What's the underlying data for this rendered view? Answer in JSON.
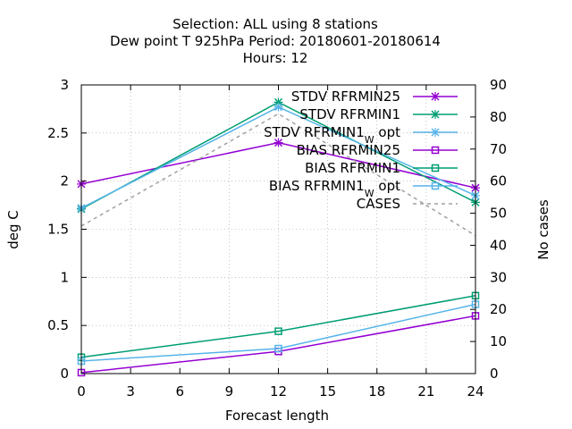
{
  "chart_data": {
    "type": "line",
    "title_lines": [
      "Selection: ALL using     8 stations",
      "Dew point T 925hPa   Period: 20180601-20180614",
      "Hours:  12"
    ],
    "xlabel": "Forecast length",
    "ylabel": "deg C",
    "y2label": "No cases",
    "xlim": [
      0,
      24
    ],
    "ylim": [
      0,
      3
    ],
    "y2lim": [
      0,
      90
    ],
    "x_ticks": [
      0,
      3,
      6,
      9,
      12,
      15,
      18,
      21,
      24
    ],
    "y_ticks": [
      "0",
      "0.5",
      "1",
      "1.5",
      "2",
      "2.5",
      "3"
    ],
    "y_tick_values": [
      0,
      0.5,
      1,
      1.5,
      2,
      2.5,
      3
    ],
    "y2_ticks": [
      0,
      10,
      20,
      30,
      40,
      50,
      60,
      70,
      80,
      90
    ],
    "legend_position": "top-right",
    "series": [
      {
        "name": "STDV RFRMIN25",
        "axis": "y1",
        "x": [
          0,
          12,
          24
        ],
        "values": [
          1.97,
          2.4,
          1.93
        ],
        "color": "#9400d3",
        "marker": "x",
        "dash": ""
      },
      {
        "name": "STDV RFRMIN1",
        "axis": "y1",
        "x": [
          0,
          12,
          24
        ],
        "values": [
          1.71,
          2.82,
          1.78
        ],
        "color": "#009e73",
        "marker": "x",
        "dash": ""
      },
      {
        "name": "STDV RFRMIN1",
        "name_sub": "W",
        "name_suffix": " opt",
        "axis": "y1",
        "x": [
          0,
          12,
          24
        ],
        "values": [
          1.72,
          2.77,
          1.85
        ],
        "color": "#56b4e9",
        "marker": "x",
        "dash": ""
      },
      {
        "name": "BIAS RFRMIN25",
        "axis": "y1",
        "x": [
          0,
          12,
          24
        ],
        "values": [
          0.01,
          0.23,
          0.6
        ],
        "color": "#9400d3",
        "marker": "square",
        "dash": ""
      },
      {
        "name": "BIAS RFRMIN1",
        "axis": "y1",
        "x": [
          0,
          12,
          24
        ],
        "values": [
          0.17,
          0.44,
          0.81
        ],
        "color": "#009e73",
        "marker": "square",
        "dash": ""
      },
      {
        "name": "BIAS RFRMIN1",
        "name_sub": "W",
        "name_suffix": " opt",
        "axis": "y1",
        "x": [
          0,
          12,
          24
        ],
        "values": [
          0.13,
          0.26,
          0.72
        ],
        "color": "#56b4e9",
        "marker": "square",
        "dash": ""
      },
      {
        "name": "CASES",
        "axis": "y2",
        "x": [
          0,
          12,
          24
        ],
        "values": [
          46,
          81,
          43
        ],
        "color": "#a0a0a0",
        "marker": "none",
        "dash": "4,4"
      }
    ]
  }
}
